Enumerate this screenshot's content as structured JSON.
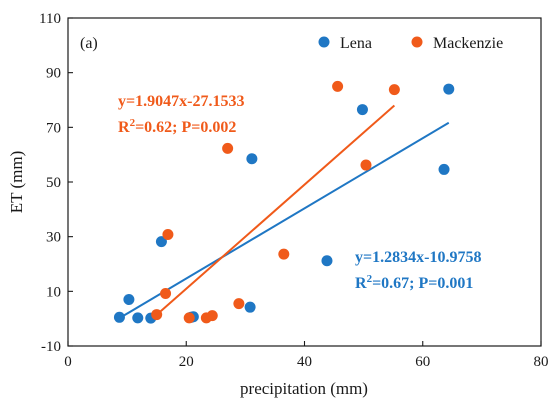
{
  "chart_data": {
    "type": "scatter",
    "panel_label": "(a)",
    "xlabel": "precipitation (mm)",
    "ylabel": "ET (mm)",
    "xlim": [
      0,
      80
    ],
    "ylim": [
      -10,
      110
    ],
    "xticks": [
      0,
      20,
      40,
      60,
      80
    ],
    "yticks": [
      -10,
      10,
      30,
      50,
      70,
      90,
      110
    ],
    "grid": false,
    "legend_position": "top-right",
    "series": [
      {
        "name": "Lena",
        "color": "#1f77c4",
        "points": [
          [
            8.7,
            0.5
          ],
          [
            10.3,
            7.0
          ],
          [
            11.8,
            0.3
          ],
          [
            14.0,
            0.2
          ],
          [
            15.8,
            28.2
          ],
          [
            20.8,
            0.5
          ],
          [
            21.2,
            0.7
          ],
          [
            30.8,
            4.2
          ],
          [
            31.1,
            58.5
          ],
          [
            43.8,
            21.2
          ],
          [
            49.8,
            76.5
          ],
          [
            63.6,
            54.6
          ],
          [
            64.4,
            84.0
          ]
        ],
        "fit": {
          "x_range": [
            8.7,
            64.4
          ],
          "slope": 1.2834,
          "intercept": -10.9758
        },
        "equation": "y=1.2834x-10.9758",
        "stats_r2_prefix": "R",
        "stats_r2_sup": "2",
        "stats_rest": "=0.67; P=0.001"
      },
      {
        "name": "Mackenzie",
        "color": "#f05a1a",
        "points": [
          [
            15.0,
            1.5
          ],
          [
            16.5,
            9.2
          ],
          [
            16.9,
            30.8
          ],
          [
            20.5,
            0.3
          ],
          [
            23.4,
            0.3
          ],
          [
            24.4,
            1.1
          ],
          [
            27.0,
            62.3
          ],
          [
            28.9,
            5.5
          ],
          [
            36.5,
            23.6
          ],
          [
            45.6,
            85.0
          ],
          [
            50.4,
            56.2
          ],
          [
            55.2,
            83.8
          ]
        ],
        "fit": {
          "x_range": [
            15.0,
            55.2
          ],
          "slope": 1.9047,
          "intercept": -27.1533
        },
        "equation": "y=1.9047x-27.1533",
        "stats_r2_prefix": "R",
        "stats_r2_sup": "2",
        "stats_rest": "=0.62; P=0.002"
      }
    ]
  }
}
